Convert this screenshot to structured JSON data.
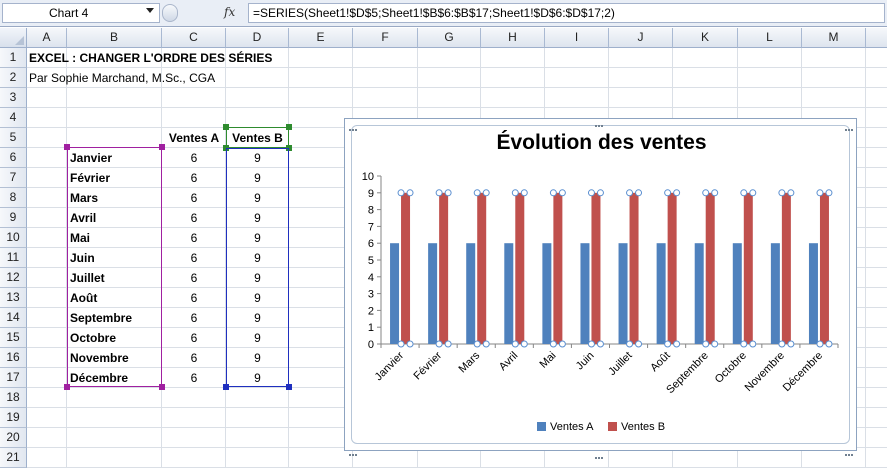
{
  "formula_bar": {
    "name_box": "Chart 4",
    "fx_label": "fx",
    "formula": "=SERIES(Sheet1!$D$5;Sheet1!$B$6:$B$17;Sheet1!$D$6:$D$17;2)"
  },
  "columns": [
    "A",
    "B",
    "C",
    "D",
    "E",
    "F",
    "G",
    "H",
    "I",
    "J",
    "K",
    "L",
    "M"
  ],
  "rows": [
    "1",
    "2",
    "3",
    "4",
    "5",
    "6",
    "7",
    "8",
    "9",
    "10",
    "11",
    "12",
    "13",
    "14",
    "15",
    "16",
    "17",
    "18",
    "19",
    "20",
    "21"
  ],
  "sheet": {
    "title": "EXCEL : CHANGER L'ORDRE DES SÉRIES",
    "author": "Par Sophie Marchand, M.Sc., CGA",
    "header_a": "Ventes A",
    "header_b": "Ventes B",
    "data_rows": [
      {
        "month": "Janvier",
        "a": "6",
        "b": "9"
      },
      {
        "month": "Février",
        "a": "6",
        "b": "9"
      },
      {
        "month": "Mars",
        "a": "6",
        "b": "9"
      },
      {
        "month": "Avril",
        "a": "6",
        "b": "9"
      },
      {
        "month": "Mai",
        "a": "6",
        "b": "9"
      },
      {
        "month": "Juin",
        "a": "6",
        "b": "9"
      },
      {
        "month": "Juillet",
        "a": "6",
        "b": "9"
      },
      {
        "month": "Août",
        "a": "6",
        "b": "9"
      },
      {
        "month": "Septembre",
        "a": "6",
        "b": "9"
      },
      {
        "month": "Octobre",
        "a": "6",
        "b": "9"
      },
      {
        "month": "Novembre",
        "a": "6",
        "b": "9"
      },
      {
        "month": "Décembre",
        "a": "6",
        "b": "9"
      }
    ]
  },
  "colors": {
    "series_a": "#4f81bd",
    "series_b": "#c0504d",
    "range_categories": "#a020a0",
    "range_series_name": "#2e8b2e",
    "range_values": "#1f2fbf"
  },
  "chart_data": {
    "type": "bar",
    "title": "Évolution des ventes",
    "categories": [
      "Janvier",
      "Février",
      "Mars",
      "Avril",
      "Mai",
      "Juin",
      "Juillet",
      "Août",
      "Septembre",
      "Octobre",
      "Novembre",
      "Décembre"
    ],
    "series": [
      {
        "name": "Ventes A",
        "values": [
          6,
          6,
          6,
          6,
          6,
          6,
          6,
          6,
          6,
          6,
          6,
          6
        ]
      },
      {
        "name": "Ventes B",
        "values": [
          9,
          9,
          9,
          9,
          9,
          9,
          9,
          9,
          9,
          9,
          9,
          9
        ]
      }
    ],
    "ylim": [
      0,
      10
    ],
    "yticks": [
      "0",
      "1",
      "2",
      "3",
      "4",
      "5",
      "6",
      "7",
      "8",
      "9",
      "10"
    ],
    "selected_series": "Ventes B",
    "legend": "bottom",
    "grid": false
  }
}
